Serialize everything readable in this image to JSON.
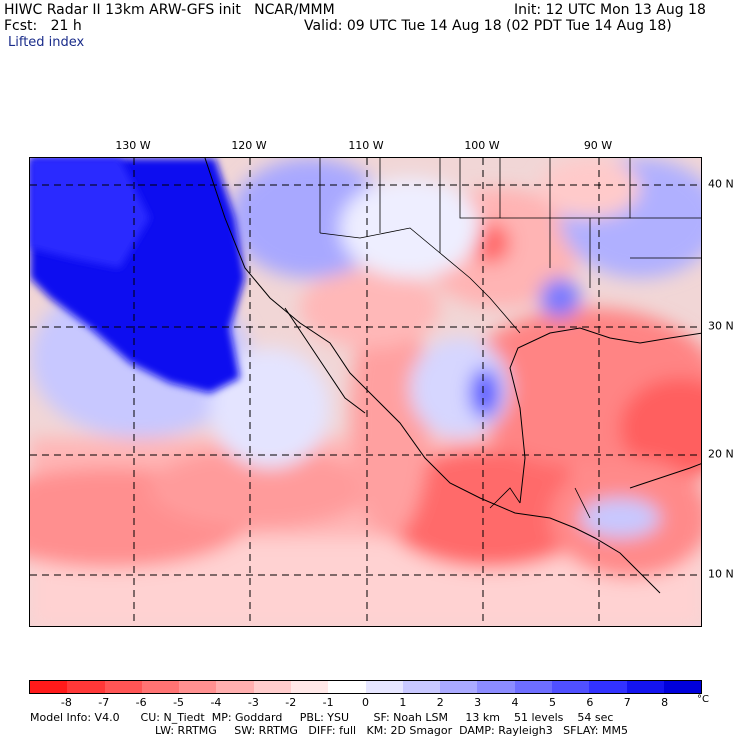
{
  "header": {
    "line1_left": "HIWC Radar II 13km ARW-GFS init   NCAR/MMM",
    "line1_right": "Init: 12 UTC Mon 13 Aug 18",
    "line2_left": "Fcst:   21 h",
    "line2_right": "Valid: 09 UTC Tue 14 Aug 18 (02 PDT Tue 14 Aug 18)",
    "field_name": "Lifted index"
  },
  "map": {
    "longitude_labels": [
      "130 W",
      "120 W",
      "110 W",
      "100 W",
      "90 W"
    ],
    "latitude_labels": [
      "40 N",
      "30 N",
      "20 N",
      "10 N"
    ]
  },
  "colorbar": {
    "colors": [
      "#ff1a1a",
      "#ff3838",
      "#ff5555",
      "#ff7373",
      "#ff9191",
      "#ffafaf",
      "#ffcdcd",
      "#ffe8e8",
      "#ffffff",
      "#e6e6ff",
      "#c8c8ff",
      "#aaaaff",
      "#8c8cff",
      "#6e6eff",
      "#5050ff",
      "#3232ff",
      "#1414f0",
      "#0000dc"
    ],
    "labels": [
      "-8",
      "-7",
      "-6",
      "-5",
      "-4",
      "-3",
      "-2",
      "-1",
      "0",
      "1",
      "2",
      "3",
      "4",
      "5",
      "6",
      "7",
      "8"
    ],
    "unit": "°C"
  },
  "footer": {
    "line1": "Model Info: V4.0      CU: N_Tiedt  MP: Goddard     PBL: YSU       SF: Noah LSM     13 km    51 levels    54 sec",
    "line2": "LW: RRTMG     SW: RRTMG   DIFF: full   KM: 2D Smagor  DAMP: Rayleigh3   SFLAY: MM5"
  }
}
